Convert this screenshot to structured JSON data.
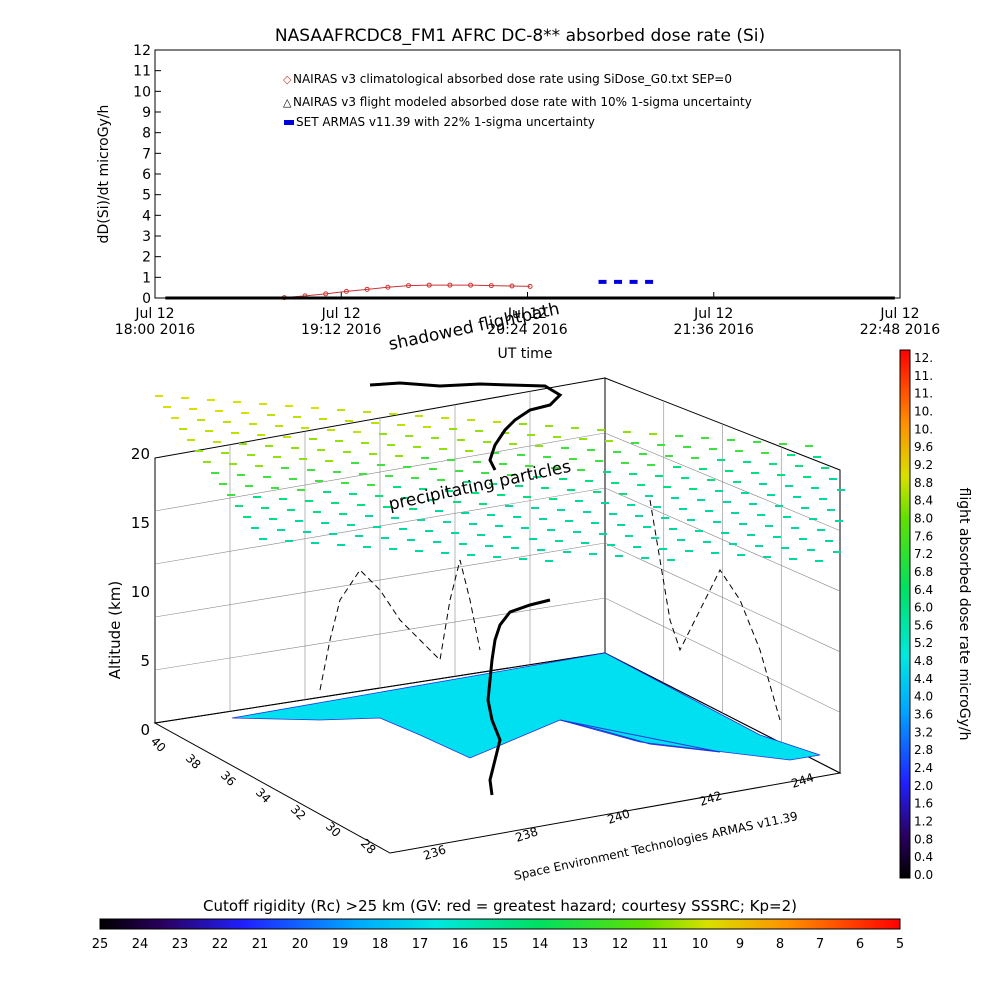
{
  "chart_data": [
    {
      "type": "line",
      "title": "NASAAFRCDC8_FM1 AFRC DC-8** absorbed dose rate (Si)",
      "xlabel": "UT time",
      "ylabel": "dD(Si)/dt microGy/h",
      "ylim": [
        0,
        12
      ],
      "yticks": [
        "0",
        "1",
        "2",
        "3",
        "4",
        "5",
        "6",
        "7",
        "8",
        "9",
        "10",
        "11",
        "12"
      ],
      "xticks": [
        {
          "top": "Jul 12",
          "bottom": "18:00 2016"
        },
        {
          "top": "Jul 12",
          "bottom": "19:12 2016"
        },
        {
          "top": "Jul 12",
          "bottom": "20:24 2016"
        },
        {
          "top": "Jul 12",
          "bottom": "21:36 2016"
        },
        {
          "top": "Jul 12",
          "bottom": "22:48 2016"
        }
      ],
      "xlim_minutes": [
        1080,
        1368
      ],
      "legend": [
        "NAIRAS v3 climatological absorbed dose rate using SiDose_G0.txt SEP=0",
        "NAIRAS v3 flight modeled absorbed dose rate with 10% 1-sigma uncertainty",
        "SET ARMAS v11.39 with 22% 1-sigma uncertainty"
      ],
      "series_colors": [
        "#cc3333",
        "#000000",
        "#0000dd"
      ],
      "series": [
        {
          "x_minutes": [
            1130,
            1138,
            1146,
            1154,
            1162,
            1170,
            1178,
            1186,
            1194,
            1202,
            1210,
            1218,
            1225
          ],
          "values": [
            0.02,
            0.1,
            0.2,
            0.32,
            0.42,
            0.52,
            0.6,
            0.62,
            0.62,
            0.62,
            0.6,
            0.58,
            0.56
          ]
        },
        {
          "x_minutes": [
            1084,
            1120,
            1160,
            1200,
            1240,
            1280,
            1320,
            1366
          ],
          "values": [
            0,
            0,
            0,
            0,
            0,
            0,
            0,
            0
          ]
        },
        {
          "x_minutes": [
            1253,
            1259,
            1265,
            1271
          ],
          "values": [
            0.78,
            0.78,
            0.78,
            0.78
          ]
        }
      ]
    },
    {
      "type": "scatter",
      "title": "",
      "zlabel": "Altitude (km)",
      "zticks": [
        "0",
        "5",
        "10",
        "15",
        "20"
      ],
      "lat_ticks": [
        "40",
        "38",
        "36",
        "34",
        "32",
        "30",
        "28"
      ],
      "lon_ticks": [
        "236",
        "238",
        "240",
        "242",
        "244"
      ],
      "annotations": [
        "shadowed flightpath",
        "precipitating particles"
      ],
      "credit": "Space Environment Technologies ARMAS v11.39"
    },
    {
      "type": "heatmap",
      "title": "flight absorbed dose rate microGy/h",
      "ticks": [
        "12.",
        "11.",
        "11.",
        "10.",
        "10.",
        "9.6",
        "9.2",
        "8.8",
        "8.4",
        "8.0",
        "7.6",
        "7.2",
        "6.8",
        "6.4",
        "6.0",
        "5.6",
        "5.2",
        "4.8",
        "4.4",
        "4.0",
        "3.6",
        "3.2",
        "2.8",
        "2.4",
        "2.0",
        "1.6",
        "1.2",
        "0.8",
        "0.4",
        "0.0"
      ],
      "range": [
        0,
        12
      ]
    },
    {
      "type": "heatmap",
      "title": "Cutoff rigidity (Rc) >25 km (GV: red = greatest hazard; courtesy SSSRC; Kp=2)",
      "ticks": [
        "25",
        "24",
        "23",
        "22",
        "21",
        "20",
        "19",
        "18",
        "17",
        "16",
        "15",
        "14",
        "13",
        "12",
        "11",
        "10",
        "9",
        "8",
        "7",
        "6",
        "5"
      ],
      "range": [
        25,
        5
      ]
    }
  ]
}
